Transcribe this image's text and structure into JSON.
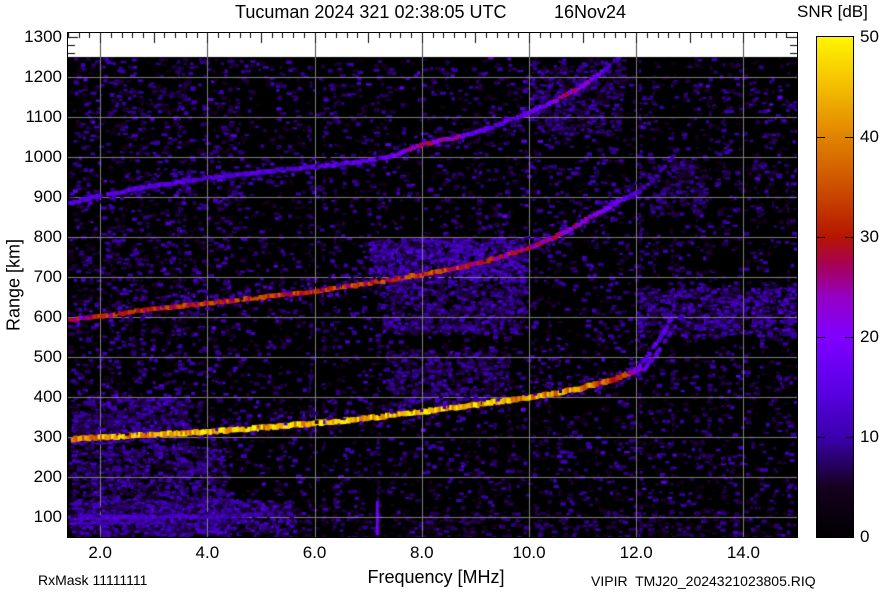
{
  "title": {
    "main": "Tucuman 2024 321 02:38:05 UTC",
    "date": "16Nov24"
  },
  "footer": {
    "rx_mask": "RxMask 11111111",
    "file": "VIPIR  TMJ20_2024321023805.RIQ"
  },
  "chart_data": {
    "type": "heatmap",
    "title": "Tucuman 2024 321 02:38:05 UTC  16Nov24",
    "xlabel": "Frequency [MHz]",
    "ylabel": "Range [km]",
    "xlim": [
      1.4,
      15.0
    ],
    "ylim": [
      50,
      1310
    ],
    "data_top_km": 1250,
    "x_ticks": {
      "values": [
        2,
        4,
        6,
        8,
        10,
        12,
        14
      ],
      "labels": [
        "2.0",
        "4.0",
        "6.0",
        "8.0",
        "10.0",
        "12.0",
        "14.0"
      ],
      "minor_step": 0.2
    },
    "y_ticks": {
      "values": [
        100,
        200,
        300,
        400,
        500,
        600,
        700,
        800,
        900,
        1000,
        1100,
        1200,
        1300
      ],
      "labels": [
        "100",
        "200",
        "300",
        "400",
        "500",
        "600",
        "700",
        "800",
        "900",
        "1000",
        "1100",
        "1200",
        "1300"
      ],
      "minor_step": 20
    },
    "grid": {
      "color": "#7d7d7d",
      "band_color": "#4a4a4a",
      "x_step": 2,
      "y_step": 100
    },
    "colorbar": {
      "label": "SNR [dB]",
      "min": 0,
      "max": 50,
      "tick_values": [
        0,
        10,
        20,
        30,
        40,
        50
      ],
      "tick_labels": [
        "0",
        "10",
        "20",
        "30",
        "40",
        "50"
      ],
      "inner_tick_values": [
        10,
        20,
        30,
        40
      ]
    },
    "palette": [
      [
        0,
        "#000000"
      ],
      [
        5,
        "#16001f"
      ],
      [
        10,
        "#3a00ad"
      ],
      [
        15,
        "#5c00e8"
      ],
      [
        20,
        "#8000ff"
      ],
      [
        24,
        "#9400c4"
      ],
      [
        27,
        "#a6005e"
      ],
      [
        30,
        "#b51500"
      ],
      [
        35,
        "#cc4f00"
      ],
      [
        40,
        "#e08300"
      ],
      [
        45,
        "#f3bd00"
      ],
      [
        50,
        "#fff500"
      ]
    ],
    "traces": [
      {
        "name": "F-trace-1st-hop",
        "w": 5,
        "h": 5,
        "gap": 0,
        "halo": {
          "up": 12,
          "dn": 4,
          "p": 0.9
        },
        "pts": [
          [
            1.5,
            294,
            36
          ],
          [
            2,
            299,
            42
          ],
          [
            3,
            306,
            44
          ],
          [
            4,
            313,
            45
          ],
          [
            5,
            323,
            44
          ],
          [
            6,
            334,
            45
          ],
          [
            7,
            347,
            44
          ],
          [
            7.6,
            357,
            46
          ],
          [
            8.4,
            370,
            46
          ],
          [
            9,
            381,
            45
          ],
          [
            9.5,
            390,
            43
          ],
          [
            10,
            399,
            42
          ],
          [
            10.5,
            408,
            41
          ],
          [
            11,
            423,
            39
          ],
          [
            11.5,
            441,
            36
          ],
          [
            11.9,
            459,
            30
          ],
          [
            12.1,
            474,
            22
          ]
        ]
      },
      {
        "name": "F-trace-1st-hop-O-branch",
        "w": 4,
        "h": 4,
        "gap": 0.35,
        "halo": {
          "up": 5,
          "dn": 3,
          "p": 0.15
        },
        "pts": [
          [
            12.0,
            468,
            17
          ],
          [
            12.2,
            500,
            16
          ],
          [
            12.4,
            538,
            15
          ],
          [
            12.55,
            572,
            14
          ],
          [
            12.65,
            596,
            13
          ]
        ]
      },
      {
        "name": "F-trace-1st-hop-X-branch",
        "w": 4,
        "h": 4,
        "gap": 0.35,
        "halo": {
          "up": 5,
          "dn": 3,
          "p": 0.15
        },
        "pts": [
          [
            12.15,
            470,
            15
          ],
          [
            12.35,
            503,
            14
          ],
          [
            12.55,
            542,
            13
          ],
          [
            12.75,
            582,
            12
          ],
          [
            12.88,
            608,
            11
          ]
        ]
      },
      {
        "name": "F-trace-1st-hop-lower-edge",
        "w": 4,
        "h": 2,
        "gap": 0.2,
        "halo": {
          "up": 2,
          "dn": 2,
          "p": 0.1
        },
        "pts": [
          [
            1.5,
            282,
            12
          ],
          [
            2.2,
            287,
            11
          ],
          [
            3,
            292,
            10
          ]
        ]
      },
      {
        "name": "F-trace-2nd-hop",
        "w": 5,
        "h": 4,
        "gap": 0.05,
        "halo": {
          "up": 13,
          "dn": 5,
          "p": 1.2
        },
        "pts": [
          [
            1.45,
            592,
            26
          ],
          [
            2,
            602,
            30
          ],
          [
            3,
            620,
            31
          ],
          [
            4,
            634,
            32
          ],
          [
            5,
            649,
            31
          ],
          [
            6,
            664,
            32
          ],
          [
            7,
            684,
            32
          ],
          [
            7.8,
            702,
            33
          ],
          [
            8.5,
            717,
            31
          ],
          [
            9,
            733,
            30
          ],
          [
            9.5,
            751,
            29
          ],
          [
            10,
            773,
            27
          ],
          [
            10.5,
            800,
            25
          ],
          [
            11,
            838,
            22
          ],
          [
            11.4,
            868,
            19
          ],
          [
            11.8,
            897,
            15
          ],
          [
            12.1,
            918,
            12
          ]
        ]
      },
      {
        "name": "F-trace-2nd-hop-split",
        "w": 4,
        "h": 3,
        "gap": 0.4,
        "halo": {
          "up": 4,
          "dn": 3,
          "p": 0.1
        },
        "pts": [
          [
            12.15,
            922,
            11
          ],
          [
            12.4,
            955,
            10
          ],
          [
            12.65,
            995,
            10
          ],
          [
            12.85,
            1030,
            9
          ]
        ]
      },
      {
        "name": "F-trace-3rd-hop",
        "w": 5,
        "h": 4,
        "gap": 0.1,
        "halo": {
          "up": 7,
          "dn": 3,
          "p": 0.6
        },
        "pts": [
          [
            1.45,
            885,
            14
          ],
          [
            2,
            903,
            15
          ],
          [
            3,
            928,
            14
          ],
          [
            4,
            948,
            14
          ],
          [
            5,
            962,
            13
          ],
          [
            6,
            975,
            14
          ],
          [
            7,
            990,
            15
          ],
          [
            7.5,
            1005,
            18
          ],
          [
            8,
            1030,
            26
          ],
          [
            8.6,
            1048,
            24
          ],
          [
            9,
            1060,
            16
          ],
          [
            9.5,
            1085,
            15
          ],
          [
            10,
            1110,
            16
          ],
          [
            10.4,
            1135,
            18
          ],
          [
            10.7,
            1155,
            26
          ],
          [
            11,
            1178,
            22
          ],
          [
            11.3,
            1205,
            16
          ],
          [
            11.55,
            1232,
            13
          ],
          [
            11.7,
            1250,
            11
          ]
        ]
      },
      {
        "name": "E-layer-trace",
        "w": 4,
        "h": 4,
        "gap": 0,
        "halo": {
          "up": 10,
          "dn": 3,
          "p": 1.6
        },
        "pts": [
          [
            1.45,
            98,
            13
          ],
          [
            2.2,
            100,
            13
          ],
          [
            3.2,
            100,
            12
          ],
          [
            4.2,
            102,
            11
          ],
          [
            5.2,
            106,
            10
          ],
          [
            5.6,
            108,
            9
          ]
        ]
      },
      {
        "name": "E-layer-thin-echo",
        "w": 4,
        "h": 2,
        "gap": 0.2,
        "halo": {
          "up": 2,
          "dn": 2,
          "p": 0.1
        },
        "pts": [
          [
            1.45,
            84,
            13
          ],
          [
            2.2,
            85,
            12
          ],
          [
            3.2,
            87,
            11
          ]
        ]
      }
    ],
    "clouds": [
      {
        "f0": 7.2,
        "f1": 9.9,
        "k0": 560,
        "k1": 690,
        "n": 700,
        "s0": 4,
        "s1": 12
      },
      {
        "f0": 7.0,
        "f1": 9.9,
        "k0": 690,
        "k1": 800,
        "n": 900,
        "s0": 5,
        "s1": 14
      },
      {
        "f0": 7.3,
        "f1": 9.6,
        "k0": 380,
        "k1": 520,
        "n": 450,
        "s0": 4,
        "s1": 11
      },
      {
        "f0": 1.45,
        "f1": 4.3,
        "k0": 55,
        "k1": 280,
        "n": 900,
        "s0": 4,
        "s1": 12
      },
      {
        "f0": 1.45,
        "f1": 3.6,
        "k0": 300,
        "k1": 400,
        "n": 500,
        "s0": 4,
        "s1": 12
      },
      {
        "f0": 12.0,
        "f1": 15.0,
        "k0": 555,
        "k1": 675,
        "n": 700,
        "s0": 4,
        "s1": 13
      },
      {
        "f0": 10.0,
        "f1": 11.7,
        "k0": 1060,
        "k1": 1240,
        "n": 350,
        "s0": 4,
        "s1": 11
      },
      {
        "f0": 12.2,
        "f1": 13.3,
        "k0": 860,
        "k1": 1000,
        "n": 180,
        "s0": 4,
        "s1": 10
      },
      {
        "f0": 1.45,
        "f1": 5.6,
        "k0": 60,
        "k1": 145,
        "n": 600,
        "s0": 5,
        "s1": 13
      },
      {
        "f0": 4.5,
        "f1": 15.0,
        "k0": 50,
        "k1": 120,
        "n": 350,
        "s0": 3,
        "s1": 9
      }
    ],
    "rfi_stripes": [
      [
        2.2,
        0.25
      ],
      [
        2.75,
        0.3
      ],
      [
        3.45,
        0.5
      ],
      [
        3.55,
        0.3
      ],
      [
        4.4,
        0.25
      ],
      [
        5.35,
        0.25
      ],
      [
        5.9,
        0.45
      ],
      [
        6.15,
        0.35
      ],
      [
        6.35,
        0.3
      ],
      [
        7.17,
        0.4
      ],
      [
        8.45,
        0.3
      ],
      [
        9.05,
        0.3
      ],
      [
        9.35,
        0.28
      ],
      [
        9.6,
        0.28
      ],
      [
        10.1,
        0.25
      ],
      [
        10.35,
        0.35
      ],
      [
        10.55,
        0.28
      ],
      [
        11.25,
        0.28
      ],
      [
        12.05,
        0.55
      ],
      [
        12.3,
        0.28
      ],
      [
        12.65,
        0.3
      ],
      [
        13.1,
        0.25
      ],
      [
        13.35,
        0.3
      ],
      [
        13.6,
        0.28
      ],
      [
        14.25,
        0.28
      ],
      [
        14.55,
        0.3
      ],
      [
        14.8,
        0.25
      ]
    ],
    "marks": [
      {
        "f": 7.17,
        "k0": 55,
        "k1": 140,
        "snr": 17,
        "w": 3
      }
    ],
    "noise": {
      "count": 26000,
      "snr_min": 2.5,
      "snr_max": 11
    }
  }
}
